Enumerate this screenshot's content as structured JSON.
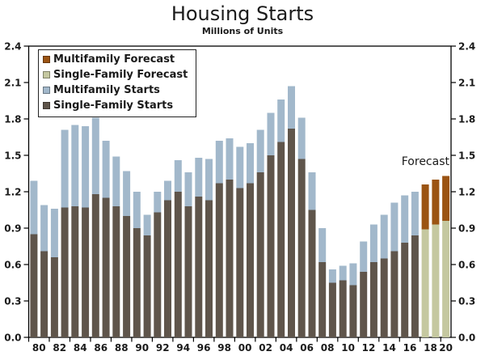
{
  "chart": {
    "title": "Housing Starts",
    "subtitle": "Millions of Units",
    "forecast_annotation": "Forecast"
  },
  "colors": {
    "single_family": "#5f554b",
    "single_family_forecast": "#c5c8a0",
    "multifamily": "#a2b8cb",
    "multifamily_forecast": "#9b5413",
    "axis": "#000000",
    "text": "#1a1a1a",
    "background": "#ffffff"
  },
  "legend": [
    {
      "label": "Multifamily Forecast",
      "color_key": "multifamily_forecast"
    },
    {
      "label": "Single-Family Forecast",
      "color_key": "single_family_forecast"
    },
    {
      "label": "Multifamily Starts",
      "color_key": "multifamily"
    },
    {
      "label": "Single-Family Starts",
      "color_key": "single_family"
    }
  ],
  "chart_data": {
    "type": "bar",
    "stacked": true,
    "title": "Housing Starts",
    "subtitle": "Millions of Units",
    "grid": false,
    "dual_y_axis": true,
    "legend_position": "top-left",
    "ylim": [
      0,
      2.4
    ],
    "ytick_step": 0.3,
    "years": [
      1980,
      1981,
      1982,
      1983,
      1984,
      1985,
      1986,
      1987,
      1988,
      1989,
      1990,
      1991,
      1992,
      1993,
      1994,
      1995,
      1996,
      1997,
      1998,
      1999,
      2000,
      2001,
      2002,
      2003,
      2004,
      2005,
      2006,
      2007,
      2008,
      2009,
      2010,
      2011,
      2012,
      2013,
      2014,
      2015,
      2016,
      2017,
      2018,
      2019,
      2020
    ],
    "x_tick_labels": [
      "80",
      "82",
      "84",
      "86",
      "88",
      "90",
      "92",
      "94",
      "96",
      "98",
      "00",
      "02",
      "04",
      "06",
      "08",
      "10",
      "12",
      "14",
      "16",
      "18",
      "20"
    ],
    "series": [
      {
        "name": "Single-Family Starts",
        "key": "single_family",
        "values": [
          0.85,
          0.71,
          0.66,
          1.07,
          1.08,
          1.07,
          1.18,
          1.15,
          1.08,
          1.0,
          0.9,
          0.84,
          1.03,
          1.13,
          1.2,
          1.08,
          1.16,
          1.13,
          1.27,
          1.3,
          1.23,
          1.27,
          1.36,
          1.5,
          1.61,
          1.72,
          1.47,
          1.05,
          0.62,
          0.45,
          0.47,
          0.43,
          0.54,
          0.62,
          0.65,
          0.71,
          0.78,
          0.84,
          0,
          0,
          0
        ]
      },
      {
        "name": "Single-Family Forecast",
        "key": "single_family_forecast",
        "values": [
          0,
          0,
          0,
          0,
          0,
          0,
          0,
          0,
          0,
          0,
          0,
          0,
          0,
          0,
          0,
          0,
          0,
          0,
          0,
          0,
          0,
          0,
          0,
          0,
          0,
          0,
          0,
          0,
          0,
          0,
          0,
          0,
          0,
          0,
          0,
          0,
          0,
          0,
          0.89,
          0.93,
          0.96
        ]
      },
      {
        "name": "Multifamily Starts",
        "key": "multifamily",
        "values": [
          0.44,
          0.38,
          0.4,
          0.64,
          0.67,
          0.67,
          0.63,
          0.47,
          0.41,
          0.37,
          0.3,
          0.17,
          0.17,
          0.16,
          0.26,
          0.28,
          0.32,
          0.34,
          0.35,
          0.34,
          0.34,
          0.33,
          0.35,
          0.35,
          0.35,
          0.35,
          0.34,
          0.31,
          0.28,
          0.11,
          0.12,
          0.18,
          0.25,
          0.31,
          0.36,
          0.4,
          0.39,
          0.36,
          0,
          0,
          0
        ]
      },
      {
        "name": "Multifamily Forecast",
        "key": "multifamily_forecast",
        "values": [
          0,
          0,
          0,
          0,
          0,
          0,
          0,
          0,
          0,
          0,
          0,
          0,
          0,
          0,
          0,
          0,
          0,
          0,
          0,
          0,
          0,
          0,
          0,
          0,
          0,
          0,
          0,
          0,
          0,
          0,
          0,
          0,
          0,
          0,
          0,
          0,
          0,
          0,
          0.37,
          0.37,
          0.37
        ]
      }
    ]
  }
}
